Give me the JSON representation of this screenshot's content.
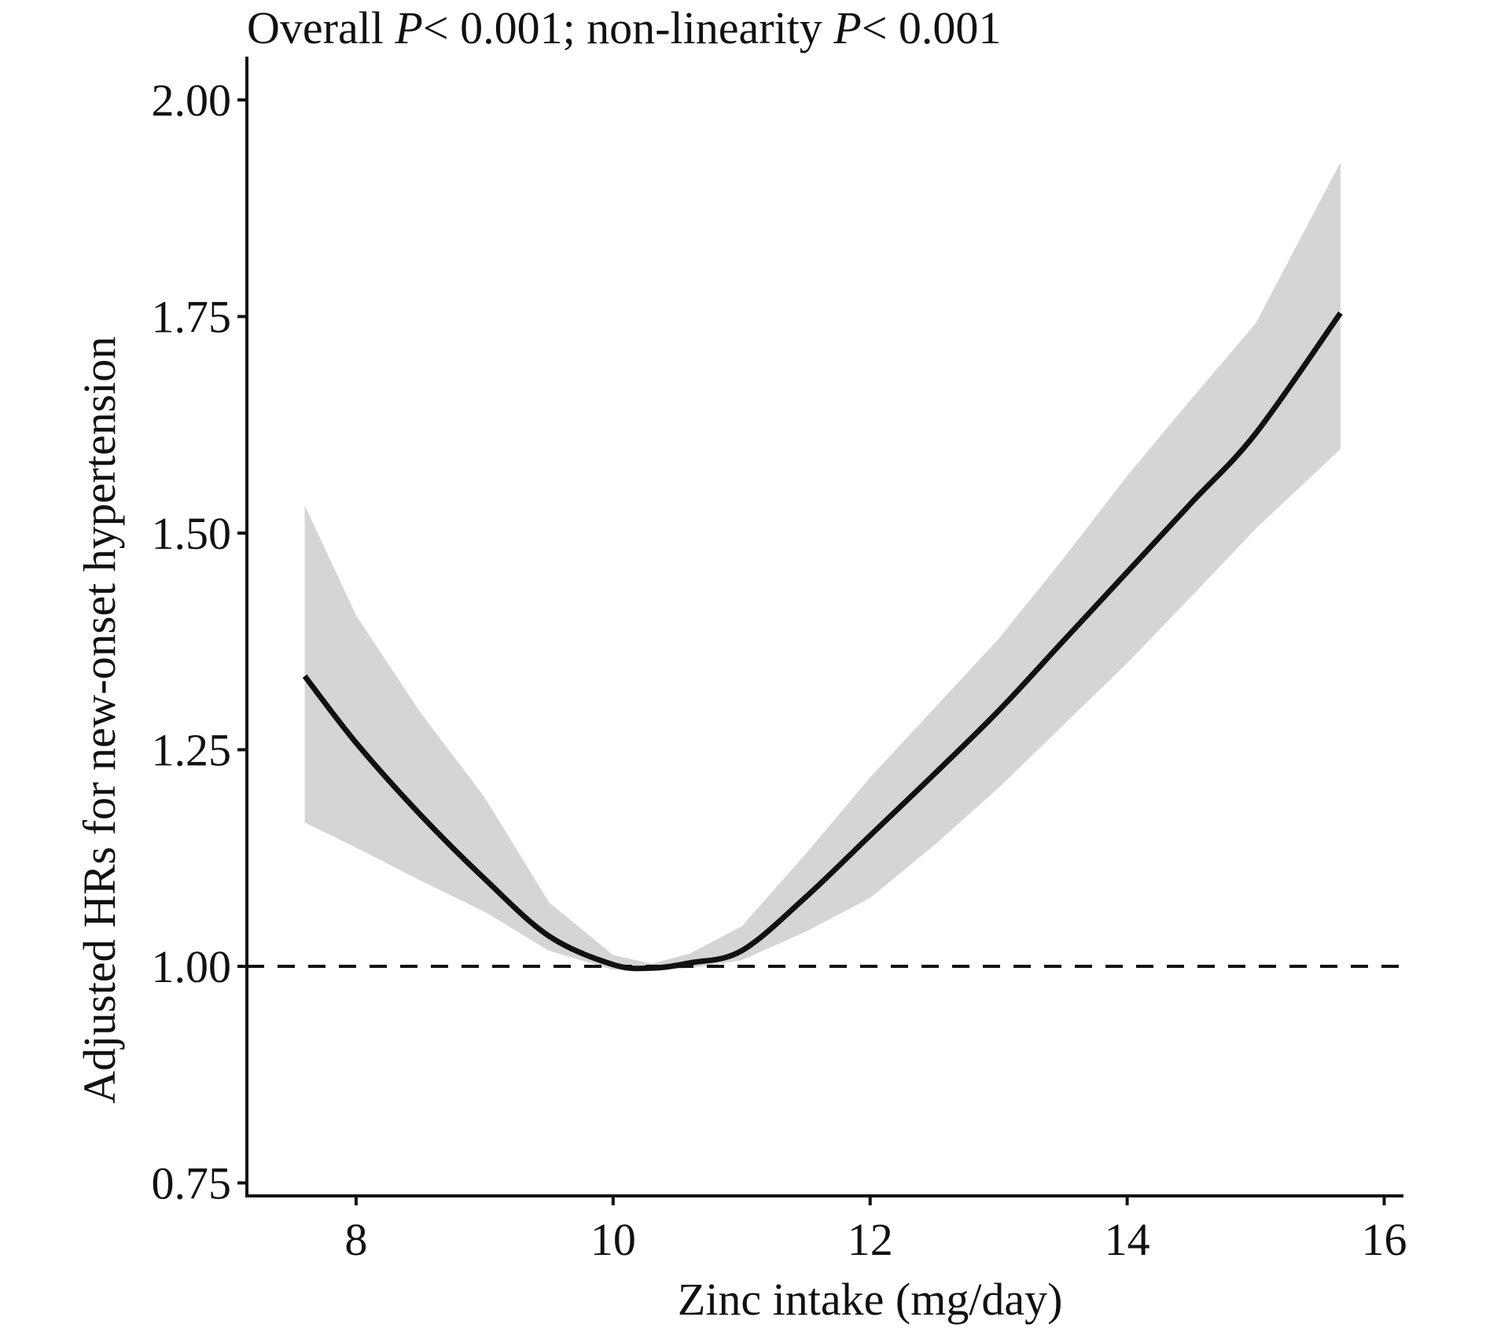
{
  "chart_data": {
    "type": "line",
    "title_parts": [
      {
        "text": "Overall ",
        "italic": false
      },
      {
        "text": "P",
        "italic": true
      },
      {
        "text": "< 0.001; non-linearity ",
        "italic": false
      },
      {
        "text": "P",
        "italic": true
      },
      {
        "text": "< 0.001",
        "italic": false
      }
    ],
    "title": "Overall P< 0.001; non-linearity P< 0.001",
    "xlabel": "Zinc intake (mg/day)",
    "ylabel": "Adjusted HRs for new-onset hypertension",
    "xlim": [
      7.15,
      16.15
    ],
    "ylim": [
      0.735,
      2.05
    ],
    "x_ticks": [
      8,
      10,
      12,
      14,
      16
    ],
    "x_tick_labels": [
      "8",
      "10",
      "12",
      "14",
      "16"
    ],
    "y_ticks": [
      0.75,
      1.0,
      1.25,
      1.5,
      1.75,
      2.0
    ],
    "y_tick_labels": [
      "0.75",
      "1.00",
      "1.25",
      "1.50",
      "1.75",
      "2.00"
    ],
    "reference_line": {
      "y": 1.0,
      "style": "dashed"
    },
    "grid": false,
    "series": [
      {
        "name": "HR",
        "x": [
          7.6,
          8.0,
          8.5,
          9.0,
          9.5,
          10.0,
          10.3,
          10.6,
          11.0,
          11.5,
          12.0,
          12.5,
          13.0,
          13.5,
          14.0,
          14.5,
          15.0,
          15.66
        ],
        "y": [
          1.335,
          1.258,
          1.175,
          1.101,
          1.035,
          1.002,
          0.998,
          1.004,
          1.018,
          1.08,
          1.151,
          1.222,
          1.295,
          1.375,
          1.455,
          1.535,
          1.615,
          1.754
        ],
        "lower": [
          1.166,
          1.137,
          1.099,
          1.063,
          1.018,
          0.996,
          0.995,
          0.998,
          1.007,
          1.04,
          1.079,
          1.14,
          1.206,
          1.278,
          1.35,
          1.427,
          1.505,
          1.597
        ],
        "upper": [
          1.532,
          1.405,
          1.293,
          1.195,
          1.074,
          1.013,
          1.003,
          1.015,
          1.046,
          1.13,
          1.218,
          1.298,
          1.378,
          1.47,
          1.566,
          1.655,
          1.742,
          1.928
        ]
      }
    ],
    "colors": {
      "line": "#111111",
      "band": "#d5d5d5",
      "axis": "#111111",
      "reference": "#111111"
    }
  }
}
